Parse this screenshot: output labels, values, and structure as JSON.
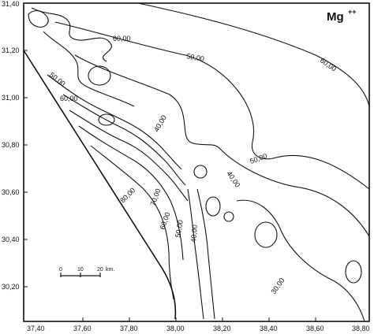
{
  "map": {
    "title": "Mg",
    "title_superscript": "++",
    "x_ticks": [
      "37,40",
      "37,60",
      "37,80",
      "38,00",
      "38,20",
      "38,40",
      "38,60",
      "38,80"
    ],
    "y_ticks": [
      "31,40",
      "31,20",
      "31,00",
      "30,80",
      "30,60",
      "30,40",
      "30,20"
    ],
    "contour_labels": [
      "60,00",
      "50,00",
      "60,00",
      "50,00",
      "60,00",
      "40,00",
      "50,00",
      "40,00",
      "80,00",
      "70,00",
      "60,00",
      "50,00",
      "40,00",
      "30,00"
    ],
    "scale_bar": {
      "labels": [
        "0",
        "10",
        "20",
        "km."
      ]
    }
  }
}
